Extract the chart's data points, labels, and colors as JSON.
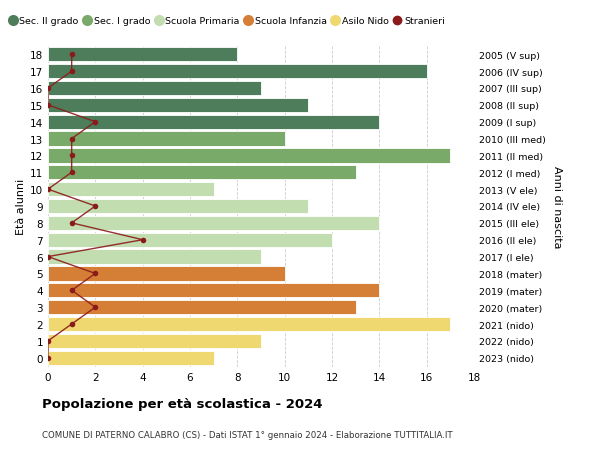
{
  "ages": [
    18,
    17,
    16,
    15,
    14,
    13,
    12,
    11,
    10,
    9,
    8,
    7,
    6,
    5,
    4,
    3,
    2,
    1,
    0
  ],
  "right_labels": [
    "2005 (V sup)",
    "2006 (IV sup)",
    "2007 (III sup)",
    "2008 (II sup)",
    "2009 (I sup)",
    "2010 (III med)",
    "2011 (II med)",
    "2012 (I med)",
    "2013 (V ele)",
    "2014 (IV ele)",
    "2015 (III ele)",
    "2016 (II ele)",
    "2017 (I ele)",
    "2018 (mater)",
    "2019 (mater)",
    "2020 (mater)",
    "2021 (nido)",
    "2022 (nido)",
    "2023 (nido)"
  ],
  "bar_values": [
    8,
    16,
    9,
    11,
    14,
    10,
    17,
    13,
    7,
    11,
    14,
    12,
    9,
    10,
    14,
    13,
    17,
    9,
    7
  ],
  "bar_colors": [
    "#4e7d5b",
    "#4e7d5b",
    "#4e7d5b",
    "#4e7d5b",
    "#4e7d5b",
    "#7aaa6a",
    "#7aaa6a",
    "#7aaa6a",
    "#c2ddb0",
    "#c2ddb0",
    "#c2ddb0",
    "#c2ddb0",
    "#c2ddb0",
    "#d47f35",
    "#d47f35",
    "#d47f35",
    "#f0d870",
    "#f0d870",
    "#f0d870"
  ],
  "stranieri_values": [
    1,
    1,
    0,
    0,
    2,
    1,
    1,
    1,
    0,
    2,
    1,
    4,
    0,
    2,
    1,
    2,
    1,
    0,
    0
  ],
  "stranieri_color": "#8b1a1a",
  "legend_labels": [
    "Sec. II grado",
    "Sec. I grado",
    "Scuola Primaria",
    "Scuola Infanzia",
    "Asilo Nido",
    "Stranieri"
  ],
  "legend_colors": [
    "#4e7d5b",
    "#7aaa6a",
    "#c2ddb0",
    "#d47f35",
    "#f0d870",
    "#8b1a1a"
  ],
  "title": "Popolazione per età scolastica - 2024",
  "subtitle": "COMUNE DI PATERNO CALABRO (CS) - Dati ISTAT 1° gennaio 2024 - Elaborazione TUTTITALIA.IT",
  "ylabel": "Età alunni",
  "ylabel_right": "Anni di nascita",
  "xlim_max": 18,
  "xticks": [
    0,
    2,
    4,
    6,
    8,
    10,
    12,
    14,
    16,
    18
  ],
  "bg_color": "#ffffff",
  "grid_color": "#cccccc",
  "bar_height": 0.85
}
